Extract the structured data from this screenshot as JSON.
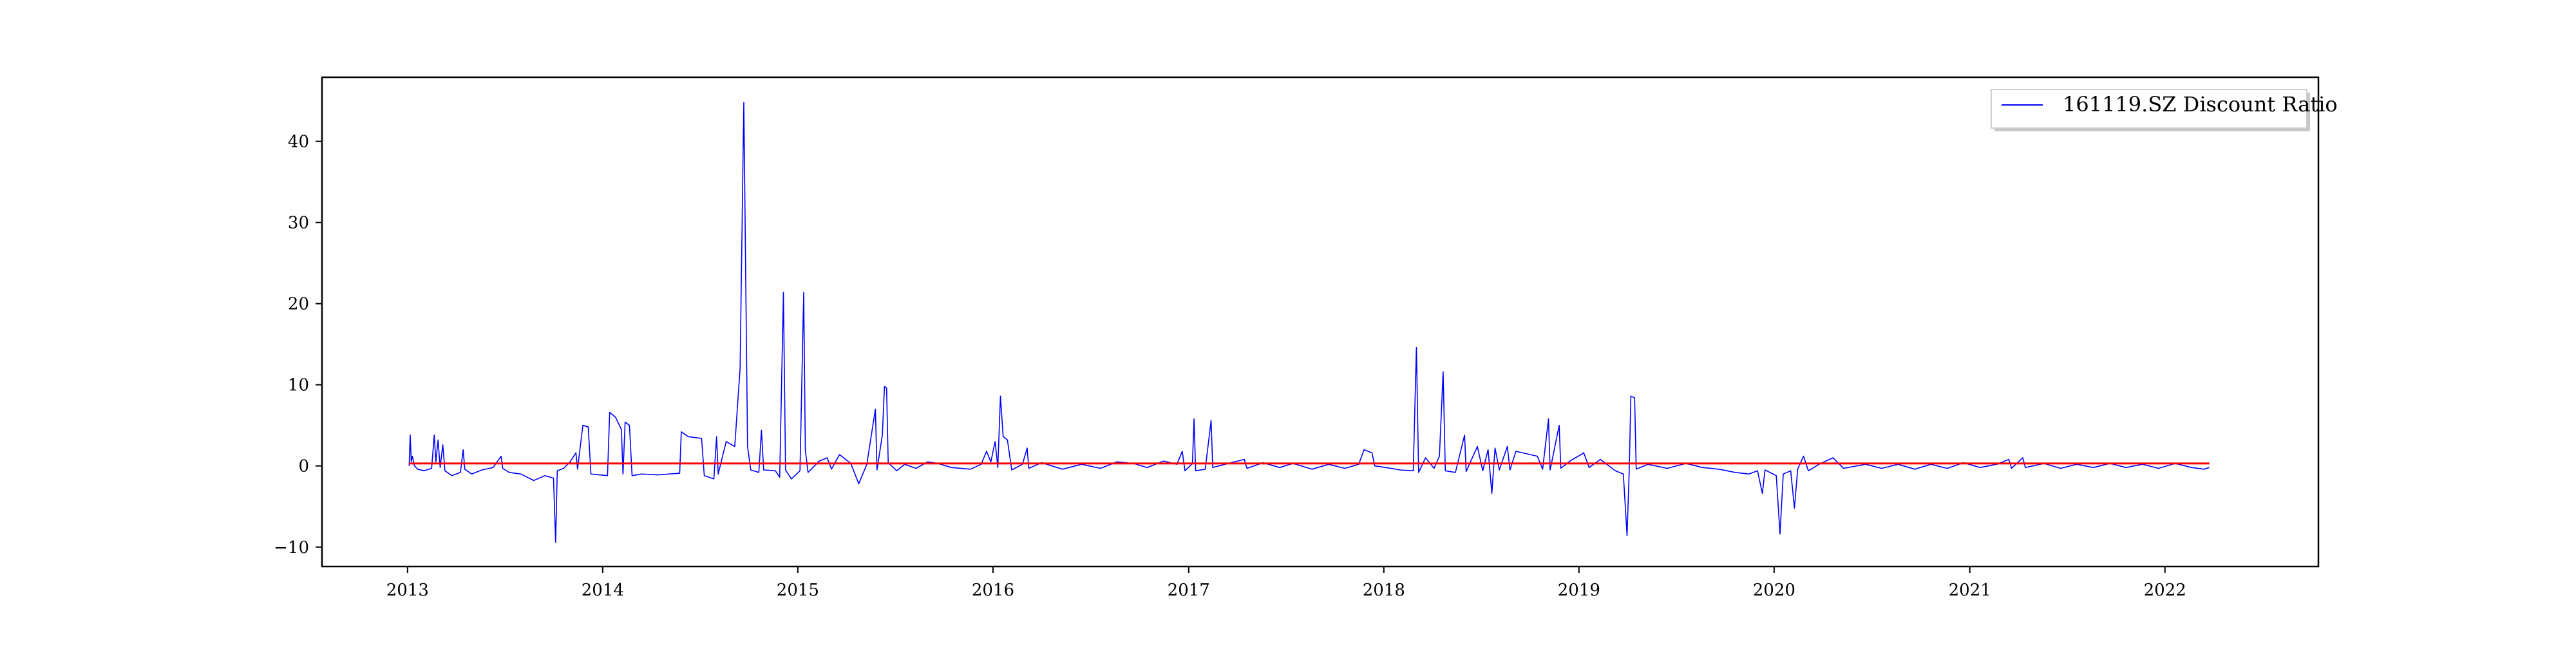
{
  "chart_data": {
    "type": "line",
    "title": "",
    "xlabel": "",
    "ylabel": "",
    "xlim": [
      "2012-07-25",
      "2022-10-15"
    ],
    "ylim": [
      -12.4,
      47.9
    ],
    "x_ticks": [
      "2013",
      "2014",
      "2015",
      "2016",
      "2017",
      "2018",
      "2019",
      "2020",
      "2021",
      "2022"
    ],
    "y_ticks": [
      -10,
      0,
      10,
      20,
      30,
      40
    ],
    "grid": false,
    "legend": {
      "position": "top-right",
      "entries": [
        "161119.SZ Discount Ratio"
      ]
    },
    "series": [
      {
        "name": "161119.SZ Discount Ratio",
        "color": "#0000ff",
        "points": [
          [
            "2013-01-04",
            0.0
          ],
          [
            "2013-01-06",
            3.8
          ],
          [
            "2013-01-08",
            0.5
          ],
          [
            "2013-01-10",
            1.2
          ],
          [
            "2013-01-14",
            0.0
          ],
          [
            "2013-01-20",
            -0.4
          ],
          [
            "2013-02-01",
            -0.6
          ],
          [
            "2013-02-15",
            -0.3
          ],
          [
            "2013-02-20",
            3.8
          ],
          [
            "2013-02-23",
            0.5
          ],
          [
            "2013-02-27",
            3.2
          ],
          [
            "2013-03-03",
            -0.2
          ],
          [
            "2013-03-08",
            2.6
          ],
          [
            "2013-03-12",
            -0.6
          ],
          [
            "2013-03-25",
            -1.2
          ],
          [
            "2013-04-10",
            -0.8
          ],
          [
            "2013-04-15",
            2.0
          ],
          [
            "2013-04-18",
            -0.4
          ],
          [
            "2013-05-01",
            -1.0
          ],
          [
            "2013-05-20",
            -0.5
          ],
          [
            "2013-06-10",
            -0.2
          ],
          [
            "2013-06-25",
            1.2
          ],
          [
            "2013-06-28",
            -0.3
          ],
          [
            "2013-07-10",
            -0.8
          ],
          [
            "2013-08-01",
            -1.0
          ],
          [
            "2013-08-25",
            -1.8
          ],
          [
            "2013-09-15",
            -1.2
          ],
          [
            "2013-10-01",
            -1.5
          ],
          [
            "2013-10-05",
            -9.4
          ],
          [
            "2013-10-08",
            -0.6
          ],
          [
            "2013-10-20",
            -0.3
          ],
          [
            "2013-11-01",
            0.5
          ],
          [
            "2013-11-12",
            1.6
          ],
          [
            "2013-11-15",
            -0.4
          ],
          [
            "2013-11-25",
            5.0
          ],
          [
            "2013-12-05",
            4.8
          ],
          [
            "2013-12-10",
            -1.0
          ],
          [
            "2014-01-10",
            -1.2
          ],
          [
            "2014-01-14",
            6.6
          ],
          [
            "2014-01-25",
            6.0
          ],
          [
            "2014-02-05",
            4.5
          ],
          [
            "2014-02-08",
            -1.0
          ],
          [
            "2014-02-12",
            5.4
          ],
          [
            "2014-02-20",
            5.0
          ],
          [
            "2014-02-25",
            -1.2
          ],
          [
            "2014-03-15",
            -1.0
          ],
          [
            "2014-04-15",
            -1.1
          ],
          [
            "2014-05-25",
            -0.9
          ],
          [
            "2014-05-28",
            4.2
          ],
          [
            "2014-06-10",
            3.6
          ],
          [
            "2014-07-05",
            3.4
          ],
          [
            "2014-07-10",
            -1.2
          ],
          [
            "2014-07-28",
            -1.6
          ],
          [
            "2014-08-02",
            3.6
          ],
          [
            "2014-08-05",
            -1.0
          ],
          [
            "2014-08-20",
            3.0
          ],
          [
            "2014-09-05",
            2.4
          ],
          [
            "2014-09-15",
            12.0
          ],
          [
            "2014-09-22",
            44.8
          ],
          [
            "2014-09-26",
            20.0
          ],
          [
            "2014-09-29",
            2.4
          ],
          [
            "2014-10-05",
            -0.5
          ],
          [
            "2014-10-20",
            -0.8
          ],
          [
            "2014-10-25",
            4.4
          ],
          [
            "2014-10-29",
            -0.5
          ],
          [
            "2014-11-20",
            -0.6
          ],
          [
            "2014-11-28",
            -1.4
          ],
          [
            "2014-12-05",
            21.4
          ],
          [
            "2014-12-09",
            -0.5
          ],
          [
            "2014-12-20",
            -1.6
          ],
          [
            "2015-01-05",
            -0.6
          ],
          [
            "2015-01-12",
            21.4
          ],
          [
            "2015-01-15",
            2.0
          ],
          [
            "2015-01-20",
            -0.8
          ],
          [
            "2015-02-10",
            0.6
          ],
          [
            "2015-02-25",
            1.0
          ],
          [
            "2015-03-05",
            -0.4
          ],
          [
            "2015-03-20",
            1.4
          ],
          [
            "2015-04-10",
            0.3
          ],
          [
            "2015-04-25",
            -2.2
          ],
          [
            "2015-05-10",
            0.2
          ],
          [
            "2015-05-26",
            7.0
          ],
          [
            "2015-05-29",
            -0.5
          ],
          [
            "2015-06-08",
            3.8
          ],
          [
            "2015-06-12",
            9.8
          ],
          [
            "2015-06-16",
            9.6
          ],
          [
            "2015-06-19",
            0.4
          ],
          [
            "2015-07-05",
            -0.6
          ],
          [
            "2015-07-20",
            0.2
          ],
          [
            "2015-08-10",
            -0.3
          ],
          [
            "2015-09-01",
            0.5
          ],
          [
            "2015-09-20",
            0.3
          ],
          [
            "2015-10-15",
            -0.2
          ],
          [
            "2015-11-20",
            -0.4
          ],
          [
            "2015-12-10",
            0.2
          ],
          [
            "2015-12-20",
            1.8
          ],
          [
            "2015-12-28",
            0.5
          ],
          [
            "2016-01-05",
            3.0
          ],
          [
            "2016-01-10",
            -0.2
          ],
          [
            "2016-01-15",
            8.6
          ],
          [
            "2016-01-20",
            3.6
          ],
          [
            "2016-01-28",
            3.2
          ],
          [
            "2016-02-05",
            -0.5
          ],
          [
            "2016-02-25",
            0.2
          ],
          [
            "2016-03-05",
            2.2
          ],
          [
            "2016-03-08",
            -0.3
          ],
          [
            "2016-04-01",
            0.4
          ],
          [
            "2016-05-10",
            -0.4
          ],
          [
            "2016-06-15",
            0.2
          ],
          [
            "2016-07-20",
            -0.3
          ],
          [
            "2016-08-20",
            0.5
          ],
          [
            "2016-09-20",
            0.3
          ],
          [
            "2016-10-15",
            -0.2
          ],
          [
            "2016-11-15",
            0.6
          ],
          [
            "2016-12-10",
            0.2
          ],
          [
            "2016-12-20",
            1.8
          ],
          [
            "2016-12-25",
            -0.6
          ],
          [
            "2017-01-08",
            0.3
          ],
          [
            "2017-01-11",
            5.8
          ],
          [
            "2017-01-14",
            -0.6
          ],
          [
            "2017-02-01",
            -0.4
          ],
          [
            "2017-02-12",
            5.6
          ],
          [
            "2017-02-15",
            -0.2
          ],
          [
            "2017-03-10",
            0.2
          ],
          [
            "2017-04-15",
            0.8
          ],
          [
            "2017-04-20",
            -0.3
          ],
          [
            "2017-05-20",
            0.4
          ],
          [
            "2017-06-20",
            -0.2
          ],
          [
            "2017-07-15",
            0.3
          ],
          [
            "2017-08-20",
            -0.4
          ],
          [
            "2017-09-20",
            0.2
          ],
          [
            "2017-10-20",
            -0.3
          ],
          [
            "2017-11-15",
            0.2
          ],
          [
            "2017-11-25",
            2.0
          ],
          [
            "2017-12-10",
            1.6
          ],
          [
            "2017-12-15",
            0.0
          ],
          [
            "2018-01-05",
            -0.2
          ],
          [
            "2018-02-01",
            -0.5
          ],
          [
            "2018-02-25",
            -0.6
          ],
          [
            "2018-03-03",
            14.6
          ],
          [
            "2018-03-07",
            -0.8
          ],
          [
            "2018-03-20",
            1.0
          ],
          [
            "2018-04-05",
            -0.3
          ],
          [
            "2018-04-15",
            1.2
          ],
          [
            "2018-04-22",
            11.6
          ],
          [
            "2018-04-26",
            -0.6
          ],
          [
            "2018-05-15",
            -0.8
          ],
          [
            "2018-06-01",
            3.8
          ],
          [
            "2018-06-04",
            -0.7
          ],
          [
            "2018-06-25",
            2.4
          ],
          [
            "2018-07-05",
            -0.6
          ],
          [
            "2018-07-15",
            2.0
          ],
          [
            "2018-07-22",
            -3.4
          ],
          [
            "2018-07-28",
            2.2
          ],
          [
            "2018-08-05",
            -0.5
          ],
          [
            "2018-08-20",
            2.4
          ],
          [
            "2018-08-25",
            -0.5
          ],
          [
            "2018-09-05",
            1.8
          ],
          [
            "2018-10-15",
            1.2
          ],
          [
            "2018-10-25",
            -0.4
          ],
          [
            "2018-11-05",
            5.8
          ],
          [
            "2018-11-08",
            -0.5
          ],
          [
            "2018-11-25",
            5.0
          ],
          [
            "2018-11-28",
            -0.3
          ],
          [
            "2018-12-15",
            0.6
          ],
          [
            "2019-01-10",
            1.6
          ],
          [
            "2019-01-20",
            -0.2
          ],
          [
            "2019-02-10",
            0.8
          ],
          [
            "2019-03-10",
            -0.6
          ],
          [
            "2019-03-25",
            -1.0
          ],
          [
            "2019-04-01",
            -8.6
          ],
          [
            "2019-04-05",
            -0.4
          ],
          [
            "2019-04-08",
            8.6
          ],
          [
            "2019-04-15",
            8.4
          ],
          [
            "2019-04-18",
            -0.4
          ],
          [
            "2019-05-10",
            0.2
          ],
          [
            "2019-06-15",
            -0.3
          ],
          [
            "2019-07-20",
            0.3
          ],
          [
            "2019-08-20",
            -0.2
          ],
          [
            "2019-09-20",
            -0.4
          ],
          [
            "2019-10-20",
            -0.8
          ],
          [
            "2019-11-15",
            -1.0
          ],
          [
            "2019-12-01",
            -0.6
          ],
          [
            "2019-12-10",
            -3.4
          ],
          [
            "2019-12-15",
            -0.5
          ],
          [
            "2020-01-05",
            -1.2
          ],
          [
            "2020-01-12",
            -8.4
          ],
          [
            "2020-01-18",
            -1.0
          ],
          [
            "2020-02-01",
            -0.6
          ],
          [
            "2020-02-08",
            -5.2
          ],
          [
            "2020-02-14",
            -0.4
          ],
          [
            "2020-02-25",
            1.2
          ],
          [
            "2020-03-05",
            -0.6
          ],
          [
            "2020-03-25",
            0.2
          ],
          [
            "2020-04-20",
            1.0
          ],
          [
            "2020-05-10",
            -0.3
          ],
          [
            "2020-06-20",
            0.2
          ],
          [
            "2020-07-20",
            -0.3
          ],
          [
            "2020-08-20",
            0.2
          ],
          [
            "2020-09-20",
            -0.4
          ],
          [
            "2020-10-20",
            0.2
          ],
          [
            "2020-11-20",
            -0.3
          ],
          [
            "2020-12-20",
            0.4
          ],
          [
            "2021-01-20",
            -0.2
          ],
          [
            "2021-02-20",
            0.2
          ],
          [
            "2021-03-15",
            0.8
          ],
          [
            "2021-03-20",
            -0.3
          ],
          [
            "2021-04-10",
            1.0
          ],
          [
            "2021-04-15",
            -0.2
          ],
          [
            "2021-05-20",
            0.3
          ],
          [
            "2021-06-20",
            -0.3
          ],
          [
            "2021-07-20",
            0.2
          ],
          [
            "2021-08-20",
            -0.2
          ],
          [
            "2021-09-20",
            0.3
          ],
          [
            "2021-10-20",
            -0.2
          ],
          [
            "2021-11-20",
            0.2
          ],
          [
            "2021-12-20",
            -0.3
          ],
          [
            "2022-01-20",
            0.3
          ],
          [
            "2022-02-20",
            -0.2
          ],
          [
            "2022-03-15",
            -0.4
          ],
          [
            "2022-03-25",
            -0.2
          ]
        ]
      },
      {
        "name": "",
        "color": "#ff0000",
        "points": [
          [
            "2013-01-04",
            0.3
          ],
          [
            "2022-03-25",
            0.3
          ]
        ]
      }
    ]
  }
}
